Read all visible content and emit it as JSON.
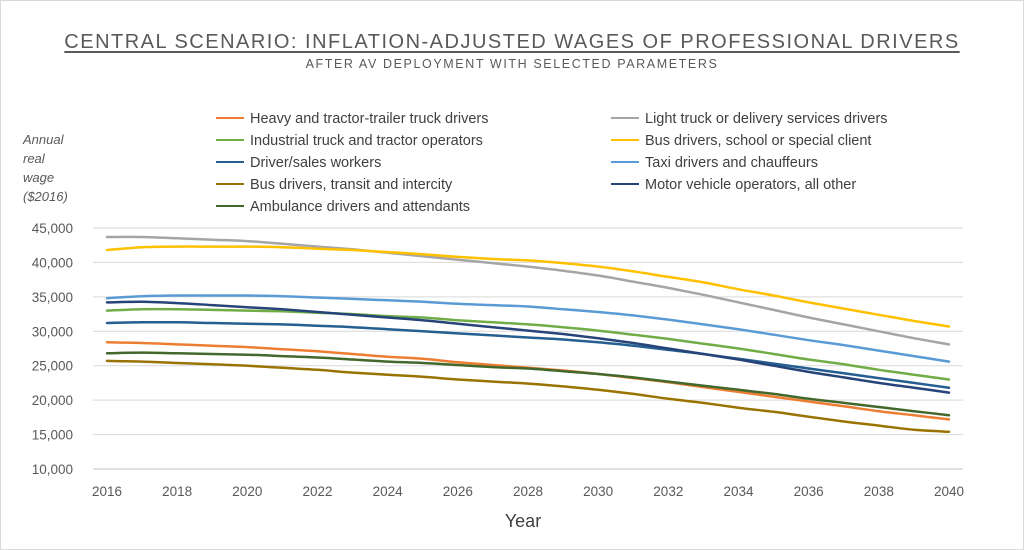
{
  "chart_data": {
    "type": "line",
    "title": "CENTRAL SCENARIO: INFLATION-ADJUSTED WAGES OF PROFESSIONAL DRIVERS",
    "subtitle": "AFTER AV DEPLOYMENT WITH SELECTED PARAMETERS",
    "ylabel_lines": [
      "Annual",
      "real",
      "wage",
      "($2016)"
    ],
    "xlabel": "Year",
    "ylim": [
      10000,
      45000
    ],
    "yticks": [
      "10,000",
      "15,000",
      "20,000",
      "25,000",
      "30,000",
      "35,000",
      "40,000",
      "45,000"
    ],
    "ytick_values": [
      10000,
      15000,
      20000,
      25000,
      30000,
      35000,
      40000,
      45000
    ],
    "xticks": [
      "2016",
      "2018",
      "2020",
      "2022",
      "2024",
      "2026",
      "2028",
      "2030",
      "2032",
      "2034",
      "2036",
      "2038",
      "2040"
    ],
    "xlim": [
      2016,
      2040
    ],
    "grid": "horizontal",
    "legend_position": "top",
    "x": [
      2016,
      2017,
      2018,
      2019,
      2020,
      2021,
      2022,
      2023,
      2024,
      2025,
      2026,
      2027,
      2028,
      2029,
      2030,
      2031,
      2032,
      2033,
      2034,
      2035,
      2036,
      2037,
      2038,
      2039,
      2040
    ],
    "series": [
      {
        "name": "Heavy and tractor-trailer truck drivers",
        "color": "#ED7D31",
        "values": [
          28400,
          28300,
          28100,
          27900,
          27700,
          27400,
          27100,
          26700,
          26300,
          26000,
          25500,
          25100,
          24700,
          24300,
          23800,
          23200,
          22600,
          21900,
          21200,
          20500,
          19800,
          19100,
          18400,
          17800,
          17200
        ]
      },
      {
        "name": "Light truck or delivery services drivers",
        "color": "#A5A5A5",
        "values": [
          43700,
          43700,
          43500,
          43300,
          43100,
          42700,
          42300,
          41900,
          41400,
          40900,
          40400,
          39900,
          39400,
          38800,
          38100,
          37200,
          36300,
          35300,
          34200,
          33100,
          32000,
          31000,
          30000,
          29000,
          28100
        ]
      },
      {
        "name": "Industrial truck and tractor operators",
        "color": "#70AD47",
        "values": [
          33000,
          33200,
          33200,
          33100,
          33000,
          32900,
          32700,
          32500,
          32200,
          32000,
          31600,
          31300,
          31000,
          30600,
          30100,
          29500,
          28900,
          28200,
          27500,
          26700,
          25900,
          25200,
          24400,
          23700,
          23000
        ]
      },
      {
        "name": "Bus drivers, school or special client",
        "color": "#FFC000",
        "values": [
          41800,
          42200,
          42300,
          42300,
          42300,
          42200,
          42000,
          41800,
          41500,
          41200,
          40800,
          40500,
          40300,
          39900,
          39400,
          38700,
          37900,
          37100,
          36100,
          35200,
          34200,
          33300,
          32400,
          31500,
          30700
        ]
      },
      {
        "name": "Driver/sales workers",
        "color": "#255E91",
        "values": [
          31200,
          31300,
          31300,
          31200,
          31100,
          31000,
          30800,
          30600,
          30300,
          30000,
          29700,
          29400,
          29100,
          28800,
          28400,
          27900,
          27300,
          26700,
          26000,
          25300,
          24600,
          23900,
          23200,
          22500,
          21800
        ]
      },
      {
        "name": "Taxi drivers and chauffeurs",
        "color": "#5B9BD5",
        "values": [
          34800,
          35100,
          35200,
          35200,
          35200,
          35100,
          34900,
          34700,
          34500,
          34300,
          34000,
          33800,
          33600,
          33200,
          32800,
          32300,
          31700,
          31000,
          30300,
          29500,
          28700,
          28000,
          27200,
          26400,
          25600
        ]
      },
      {
        "name": "Bus drivers, transit and intercity",
        "color": "#997300",
        "values": [
          25700,
          25600,
          25400,
          25200,
          25000,
          24700,
          24400,
          24000,
          23700,
          23400,
          23000,
          22700,
          22400,
          22000,
          21500,
          20900,
          20200,
          19600,
          18900,
          18300,
          17600,
          16900,
          16300,
          15700,
          15400
        ]
      },
      {
        "name": "Motor vehicle operators, all other",
        "color": "#264478",
        "values": [
          34200,
          34300,
          34100,
          33800,
          33500,
          33200,
          32800,
          32400,
          32000,
          31600,
          31100,
          30600,
          30100,
          29600,
          29000,
          28300,
          27500,
          26700,
          25900,
          25000,
          24100,
          23300,
          22500,
          21800,
          21100
        ]
      },
      {
        "name": "Ambulance drivers and attendants",
        "color": "#43682B",
        "values": [
          26800,
          26900,
          26800,
          26700,
          26600,
          26400,
          26200,
          25900,
          25600,
          25400,
          25100,
          24800,
          24600,
          24200,
          23800,
          23300,
          22700,
          22100,
          21500,
          20900,
          20200,
          19600,
          19000,
          18400,
          17800
        ]
      }
    ]
  }
}
